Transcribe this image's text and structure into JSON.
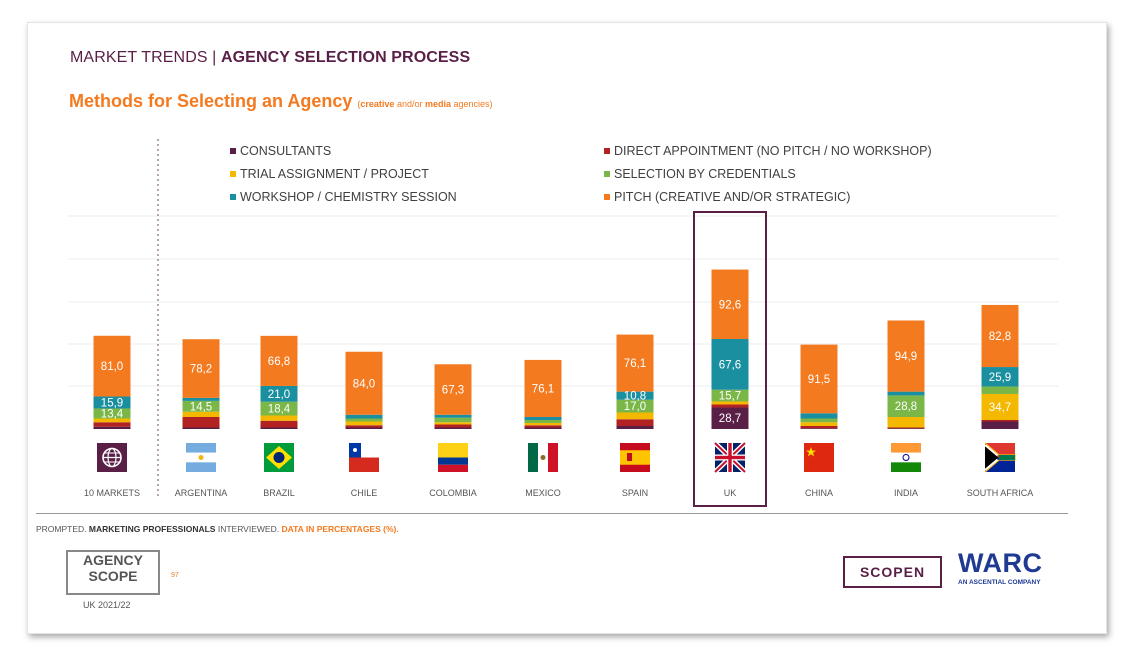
{
  "header": {
    "prefix": "MARKET TRENDS | ",
    "title": "AGENCY SELECTION PROCESS"
  },
  "subtitle": {
    "main": "Methods for Selecting an Agency",
    "note_open": "(",
    "note_b1": "creative",
    "note_mid": " and/or ",
    "note_b2": "media",
    "note_close": " agencies)"
  },
  "legend": [
    {
      "label": "CONSULTANTS",
      "color": "#5a1f46"
    },
    {
      "label": "DIRECT APPOINTMENT (NO PITCH / NO WORKSHOP)",
      "color": "#b22222"
    },
    {
      "label": "TRIAL ASSIGNMENT / PROJECT",
      "color": "#f5b800"
    },
    {
      "label": "SELECTION BY CREDENTIALS",
      "color": "#7ab648"
    },
    {
      "label": "WORKSHOP / CHEMISTRY SESSION",
      "color": "#1a8fa0"
    },
    {
      "label": "PITCH (CREATIVE AND/OR STRATEGIC)",
      "color": "#f47a20"
    }
  ],
  "chart_data": {
    "type": "bar",
    "stacked": true,
    "categories": [
      "10 MARKETS",
      "ARGENTINA",
      "BRAZIL",
      "CHILE",
      "COLOMBIA",
      "MEXICO",
      "SPAIN",
      "UK",
      "CHINA",
      "INDIA",
      "SOUTH AFRICA"
    ],
    "highlight": "UK",
    "series": [
      {
        "name": "CONSULTANTS",
        "color": "#5a1f46",
        "values": [
          3,
          2,
          2,
          2,
          2,
          2,
          4,
          28.7,
          1,
          1,
          10
        ]
      },
      {
        "name": "DIRECT APPOINTMENT (NO PITCH / NO WORKSHOP)",
        "color": "#b22222",
        "values": [
          6,
          14,
          9,
          3,
          4,
          3,
          9,
          4,
          3,
          1,
          2
        ]
      },
      {
        "name": "TRIAL ASSIGNMENT / PROJECT",
        "color": "#f5b800",
        "values": [
          5,
          7,
          7,
          5,
          3,
          3,
          9,
          4,
          5,
          14,
          34.7
        ]
      },
      {
        "name": "SELECTION BY CREDENTIALS",
        "color": "#7ab648",
        "values": [
          13.4,
          14.5,
          18.4,
          4,
          6,
          4,
          17.0,
          15.7,
          5,
          28.8,
          10
        ]
      },
      {
        "name": "WORKSHOP / CHEMISTRY SESSION",
        "color": "#1a8fa0",
        "values": [
          15.9,
          4,
          21.0,
          5,
          4,
          4,
          10.8,
          67.6,
          7,
          5,
          25.9
        ]
      },
      {
        "name": "PITCH (CREATIVE AND/OR STRATEGIC)",
        "color": "#f47a20",
        "values": [
          81.0,
          78.2,
          66.8,
          84.0,
          67.3,
          76.1,
          76.1,
          92.6,
          91.5,
          94.9,
          82.8
        ]
      }
    ],
    "labels": [
      {
        "cat": 0,
        "series": 3,
        "text": "13,4"
      },
      {
        "cat": 0,
        "series": 4,
        "text": "15,9"
      },
      {
        "cat": 0,
        "series": 5,
        "text": "81,0"
      },
      {
        "cat": 1,
        "series": 3,
        "text": "14,5"
      },
      {
        "cat": 1,
        "series": 5,
        "text": "78,2"
      },
      {
        "cat": 2,
        "series": 3,
        "text": "18,4"
      },
      {
        "cat": 2,
        "series": 4,
        "text": "21,0"
      },
      {
        "cat": 2,
        "series": 5,
        "text": "66,8"
      },
      {
        "cat": 3,
        "series": 5,
        "text": "84,0"
      },
      {
        "cat": 4,
        "series": 5,
        "text": "67,3"
      },
      {
        "cat": 5,
        "series": 5,
        "text": "76,1"
      },
      {
        "cat": 6,
        "series": 3,
        "text": "17,0"
      },
      {
        "cat": 6,
        "series": 4,
        "text": "10,8"
      },
      {
        "cat": 6,
        "series": 5,
        "text": "76,1"
      },
      {
        "cat": 7,
        "series": 0,
        "text": "28,7"
      },
      {
        "cat": 7,
        "series": 3,
        "text": "15,7"
      },
      {
        "cat": 7,
        "series": 4,
        "text": "67,6"
      },
      {
        "cat": 7,
        "series": 5,
        "text": "92,6"
      },
      {
        "cat": 8,
        "series": 5,
        "text": "91,5"
      },
      {
        "cat": 9,
        "series": 3,
        "text": "28,8"
      },
      {
        "cat": 9,
        "series": 5,
        "text": "94,9"
      },
      {
        "cat": 10,
        "series": 2,
        "text": "34,7"
      },
      {
        "cat": 10,
        "series": 4,
        "text": "25,9"
      },
      {
        "cat": 10,
        "series": 5,
        "text": "82,8"
      }
    ],
    "ylim": [
      0,
      240
    ],
    "grid": true,
    "flags": [
      "globe-icon",
      "argentina-flag",
      "brazil-flag",
      "chile-flag",
      "colombia-flag",
      "mexico-flag",
      "spain-flag",
      "uk-flag",
      "china-flag",
      "india-flag",
      "south-africa-flag"
    ]
  },
  "footer": {
    "note_p1": "PROMPTED. ",
    "note_b": "MARKETING PROFESSIONALS",
    "note_p2": " INTERVIEWED. ",
    "note_or": "DATA IN PERCENTAGES (%).",
    "agency_l1": "AGENCY",
    "agency_l2": "SCOPE",
    "year": "UK 2021/22",
    "page": "97",
    "scopen": "SCOPEN",
    "warc": "WARC",
    "warc_sub": "AN ASCENTIAL COMPANY"
  }
}
